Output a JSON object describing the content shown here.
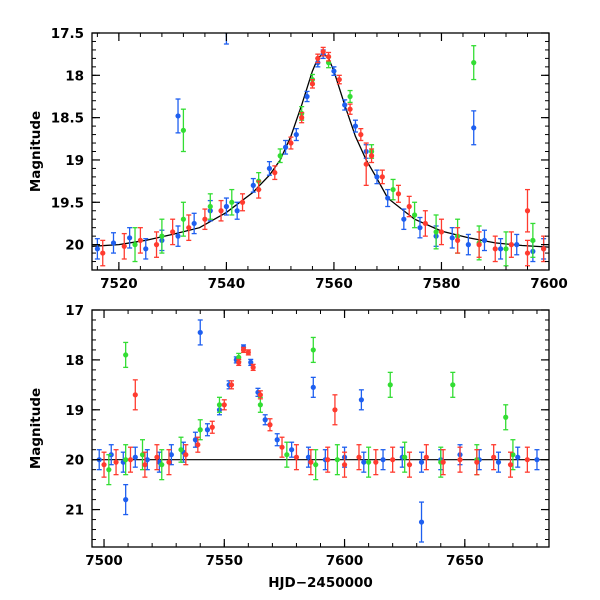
{
  "chart_data": [
    {
      "type": "scatter",
      "panel": "top",
      "ylabel": "Magnitude",
      "xlabel": "",
      "xlim": [
        7515,
        7600
      ],
      "ylim": [
        17.5,
        20.3
      ],
      "y_inverted": true,
      "x_ticks": [
        7520,
        7540,
        7560,
        7580,
        7600
      ],
      "x_tick_labels": [
        "7520",
        "7540",
        "7560",
        "7580",
        "7600"
      ],
      "y_ticks": [
        17.5,
        18,
        18.5,
        19,
        19.5,
        20
      ],
      "y_tick_labels": [
        "17.5",
        "18",
        "18.5",
        "19",
        "19.5",
        "20"
      ],
      "model_curve": {
        "color": "#000000",
        "x": [
          7515,
          7520,
          7525,
          7530,
          7535,
          7540,
          7545,
          7548,
          7550,
          7552,
          7554,
          7556,
          7557,
          7558,
          7559,
          7560,
          7562,
          7564,
          7566,
          7568,
          7570,
          7575,
          7580,
          7585,
          7590,
          7595,
          7600
        ],
        "y": [
          20.02,
          20.0,
          19.95,
          19.88,
          19.8,
          19.62,
          19.38,
          19.18,
          19.0,
          18.72,
          18.35,
          17.95,
          17.8,
          17.74,
          17.8,
          17.95,
          18.35,
          18.72,
          19.0,
          19.22,
          19.45,
          19.7,
          19.84,
          19.92,
          19.98,
          20.01,
          20.03
        ]
      },
      "series": [
        {
          "color": "#1e5ff0",
          "x": [
            7516,
            7519,
            7522,
            7525,
            7528,
            7531,
            7534,
            7537,
            7540,
            7542,
            7545,
            7548,
            7551,
            7553,
            7555,
            7557,
            7558,
            7560,
            7562,
            7564,
            7566,
            7568,
            7570,
            7573,
            7576,
            7579,
            7582,
            7585,
            7588,
            7591,
            7594,
            7597,
            7599,
            7531,
            7586,
            7540
          ],
          "y": [
            20.05,
            19.98,
            19.92,
            20.05,
            19.95,
            19.9,
            19.75,
            19.6,
            19.55,
            19.6,
            19.3,
            19.1,
            18.85,
            18.7,
            18.25,
            17.85,
            17.75,
            17.95,
            18.35,
            18.6,
            18.9,
            19.2,
            19.45,
            19.7,
            19.8,
            19.9,
            19.92,
            20.0,
            19.95,
            20.05,
            20.0,
            20.08,
            20.05,
            18.48,
            18.62,
            17.48
          ],
          "yerr": [
            0.12,
            0.12,
            0.12,
            0.12,
            0.12,
            0.12,
            0.12,
            0.12,
            0.1,
            0.1,
            0.08,
            0.08,
            0.08,
            0.07,
            0.06,
            0.05,
            0.05,
            0.05,
            0.06,
            0.07,
            0.08,
            0.08,
            0.1,
            0.12,
            0.12,
            0.12,
            0.12,
            0.12,
            0.12,
            0.12,
            0.12,
            0.12,
            0.12,
            0.2,
            0.2,
            0.15
          ]
        },
        {
          "color": "#33dd33",
          "x": [
            7523,
            7528,
            7532,
            7537,
            7541,
            7546,
            7550,
            7554,
            7556,
            7559,
            7563,
            7567,
            7571,
            7575,
            7579,
            7583,
            7587,
            7592,
            7597,
            7532,
            7586
          ],
          "y": [
            20.0,
            19.9,
            19.7,
            19.55,
            19.5,
            19.25,
            18.95,
            18.45,
            18.05,
            17.85,
            18.25,
            18.9,
            19.35,
            19.65,
            19.85,
            19.9,
            19.98,
            20.05,
            19.95,
            18.65,
            17.85
          ],
          "yerr": [
            0.2,
            0.2,
            0.2,
            0.15,
            0.15,
            0.1,
            0.08,
            0.08,
            0.06,
            0.06,
            0.07,
            0.08,
            0.12,
            0.15,
            0.2,
            0.2,
            0.2,
            0.2,
            0.2,
            0.25,
            0.2
          ]
        },
        {
          "color": "#ff3b2f",
          "x": [
            7517,
            7521,
            7524,
            7527,
            7530,
            7533,
            7536,
            7539,
            7543,
            7546,
            7549,
            7552,
            7554,
            7556,
            7557,
            7558,
            7559,
            7561,
            7563,
            7565,
            7567,
            7569,
            7572,
            7574,
            7577,
            7580,
            7583,
            7587,
            7590,
            7593,
            7596,
            7599,
            7566,
            7596
          ],
          "y": [
            20.1,
            20.02,
            19.95,
            20.0,
            19.85,
            19.8,
            19.7,
            19.6,
            19.5,
            19.35,
            19.15,
            18.8,
            18.5,
            18.1,
            17.8,
            17.72,
            17.78,
            18.05,
            18.4,
            18.7,
            18.95,
            19.2,
            19.4,
            19.55,
            19.75,
            19.85,
            19.95,
            20.0,
            20.05,
            20.0,
            20.1,
            20.05,
            19.05,
            19.6
          ],
          "yerr": [
            0.15,
            0.15,
            0.15,
            0.15,
            0.15,
            0.15,
            0.12,
            0.12,
            0.1,
            0.1,
            0.08,
            0.07,
            0.06,
            0.05,
            0.05,
            0.05,
            0.05,
            0.05,
            0.06,
            0.07,
            0.08,
            0.08,
            0.1,
            0.12,
            0.15,
            0.15,
            0.15,
            0.15,
            0.15,
            0.15,
            0.15,
            0.15,
            0.25,
            0.25
          ]
        }
      ]
    },
    {
      "type": "scatter",
      "panel": "bottom",
      "ylabel": "Magnitude",
      "xlabel": "HJD−2450000",
      "xlim": [
        7495,
        7685
      ],
      "ylim": [
        17.0,
        21.75
      ],
      "y_inverted": true,
      "x_ticks": [
        7500,
        7550,
        7600,
        7650
      ],
      "x_tick_labels": [
        "7500",
        "7550",
        "7600",
        "7650"
      ],
      "y_ticks": [
        17,
        18,
        19,
        20,
        21
      ],
      "y_tick_labels": [
        "17",
        "18",
        "19",
        "20",
        "21"
      ],
      "baseline": {
        "y": 20.0,
        "color": "#000000"
      },
      "series": [
        {
          "color": "#1e5ff0",
          "x": [
            7498,
            7503,
            7508,
            7513,
            7518,
            7523,
            7528,
            7533,
            7538,
            7543,
            7548,
            7552,
            7555,
            7558,
            7561,
            7564,
            7567,
            7572,
            7578,
            7585,
            7592,
            7600,
            7608,
            7616,
            7624,
            7632,
            7640,
            7648,
            7656,
            7664,
            7672,
            7680,
            7540,
            7587,
            7607,
            7632,
            7509
          ],
          "y": [
            20.0,
            19.9,
            20.05,
            19.95,
            20.0,
            20.05,
            19.9,
            19.85,
            19.6,
            19.4,
            19.0,
            18.5,
            18.0,
            17.75,
            18.05,
            18.65,
            19.2,
            19.6,
            19.8,
            19.95,
            20.0,
            19.95,
            20.05,
            20.0,
            19.95,
            20.05,
            20.0,
            19.9,
            20.0,
            20.05,
            19.95,
            20.0,
            17.45,
            18.55,
            18.8,
            21.25,
            20.8
          ],
          "yerr": [
            0.2,
            0.2,
            0.2,
            0.2,
            0.2,
            0.2,
            0.2,
            0.2,
            0.15,
            0.12,
            0.1,
            0.08,
            0.06,
            0.05,
            0.06,
            0.08,
            0.1,
            0.12,
            0.15,
            0.2,
            0.2,
            0.2,
            0.2,
            0.2,
            0.2,
            0.2,
            0.2,
            0.2,
            0.2,
            0.2,
            0.2,
            0.2,
            0.25,
            0.2,
            0.2,
            0.4,
            0.3
          ]
        },
        {
          "color": "#33dd33",
          "x": [
            7502,
            7509,
            7516,
            7524,
            7532,
            7540,
            7548,
            7556,
            7565,
            7576,
            7588,
            7597,
            7610,
            7625,
            7640,
            7655,
            7670,
            7509,
            7587,
            7619,
            7645,
            7667
          ],
          "y": [
            20.2,
            20.0,
            19.9,
            20.1,
            19.8,
            19.4,
            18.9,
            17.95,
            18.9,
            19.9,
            20.1,
            20.0,
            20.05,
            19.95,
            20.05,
            20.0,
            19.9,
            17.9,
            17.8,
            18.5,
            18.5,
            19.15
          ],
          "yerr": [
            0.3,
            0.3,
            0.3,
            0.3,
            0.25,
            0.2,
            0.15,
            0.08,
            0.15,
            0.25,
            0.3,
            0.3,
            0.3,
            0.3,
            0.3,
            0.3,
            0.3,
            0.25,
            0.25,
            0.25,
            0.25,
            0.25
          ]
        },
        {
          "color": "#ff3b2f",
          "x": [
            7500,
            7505,
            7511,
            7517,
            7522,
            7527,
            7534,
            7539,
            7545,
            7550,
            7553,
            7556,
            7558,
            7560,
            7562,
            7565,
            7569,
            7574,
            7580,
            7586,
            7593,
            7600,
            7606,
            7613,
            7620,
            7627,
            7634,
            7641,
            7648,
            7655,
            7662,
            7669,
            7676,
            7513,
            7596
          ],
          "y": [
            20.1,
            20.05,
            20.0,
            20.1,
            19.95,
            20.05,
            19.9,
            19.7,
            19.35,
            18.9,
            18.5,
            18.05,
            17.8,
            17.85,
            18.15,
            18.7,
            19.3,
            19.75,
            19.95,
            20.05,
            20.0,
            20.1,
            19.95,
            20.05,
            20.0,
            20.1,
            19.95,
            20.05,
            20.0,
            20.05,
            19.95,
            20.1,
            20.0,
            18.7,
            19.0
          ],
          "yerr": [
            0.25,
            0.25,
            0.25,
            0.25,
            0.25,
            0.25,
            0.2,
            0.15,
            0.12,
            0.1,
            0.08,
            0.06,
            0.05,
            0.05,
            0.06,
            0.08,
            0.12,
            0.2,
            0.25,
            0.25,
            0.25,
            0.25,
            0.25,
            0.25,
            0.25,
            0.25,
            0.25,
            0.25,
            0.25,
            0.25,
            0.25,
            0.25,
            0.25,
            0.3,
            0.3
          ]
        }
      ]
    }
  ]
}
